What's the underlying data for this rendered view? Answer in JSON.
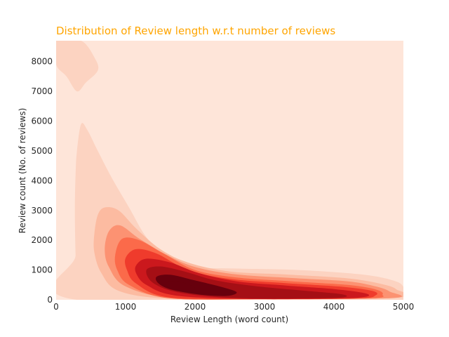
{
  "chart_data": {
    "type": "heatmap",
    "subtype": "kde-density-contour",
    "title": "Distribution of Review length w.r.t number of reviews",
    "xlabel": "Review Length (word count)",
    "ylabel": "Review count (No. of reviews)",
    "xlim": [
      0,
      5000
    ],
    "ylim": [
      0,
      8700
    ],
    "xticks": [
      0,
      1000,
      2000,
      3000,
      4000,
      5000
    ],
    "yticks": [
      0,
      1000,
      2000,
      3000,
      4000,
      5000,
      6000,
      7000,
      8000
    ],
    "colormap": "Reds",
    "levels": [
      "#fee5d9",
      "#fcd3c1",
      "#fcbba1",
      "#fc9272",
      "#fb6a4a",
      "#ef3b2c",
      "#cb181d",
      "#a50f15",
      "#67000d"
    ],
    "grid": false,
    "legend": "none",
    "peak": {
      "x": 1800,
      "y": 400
    }
  }
}
